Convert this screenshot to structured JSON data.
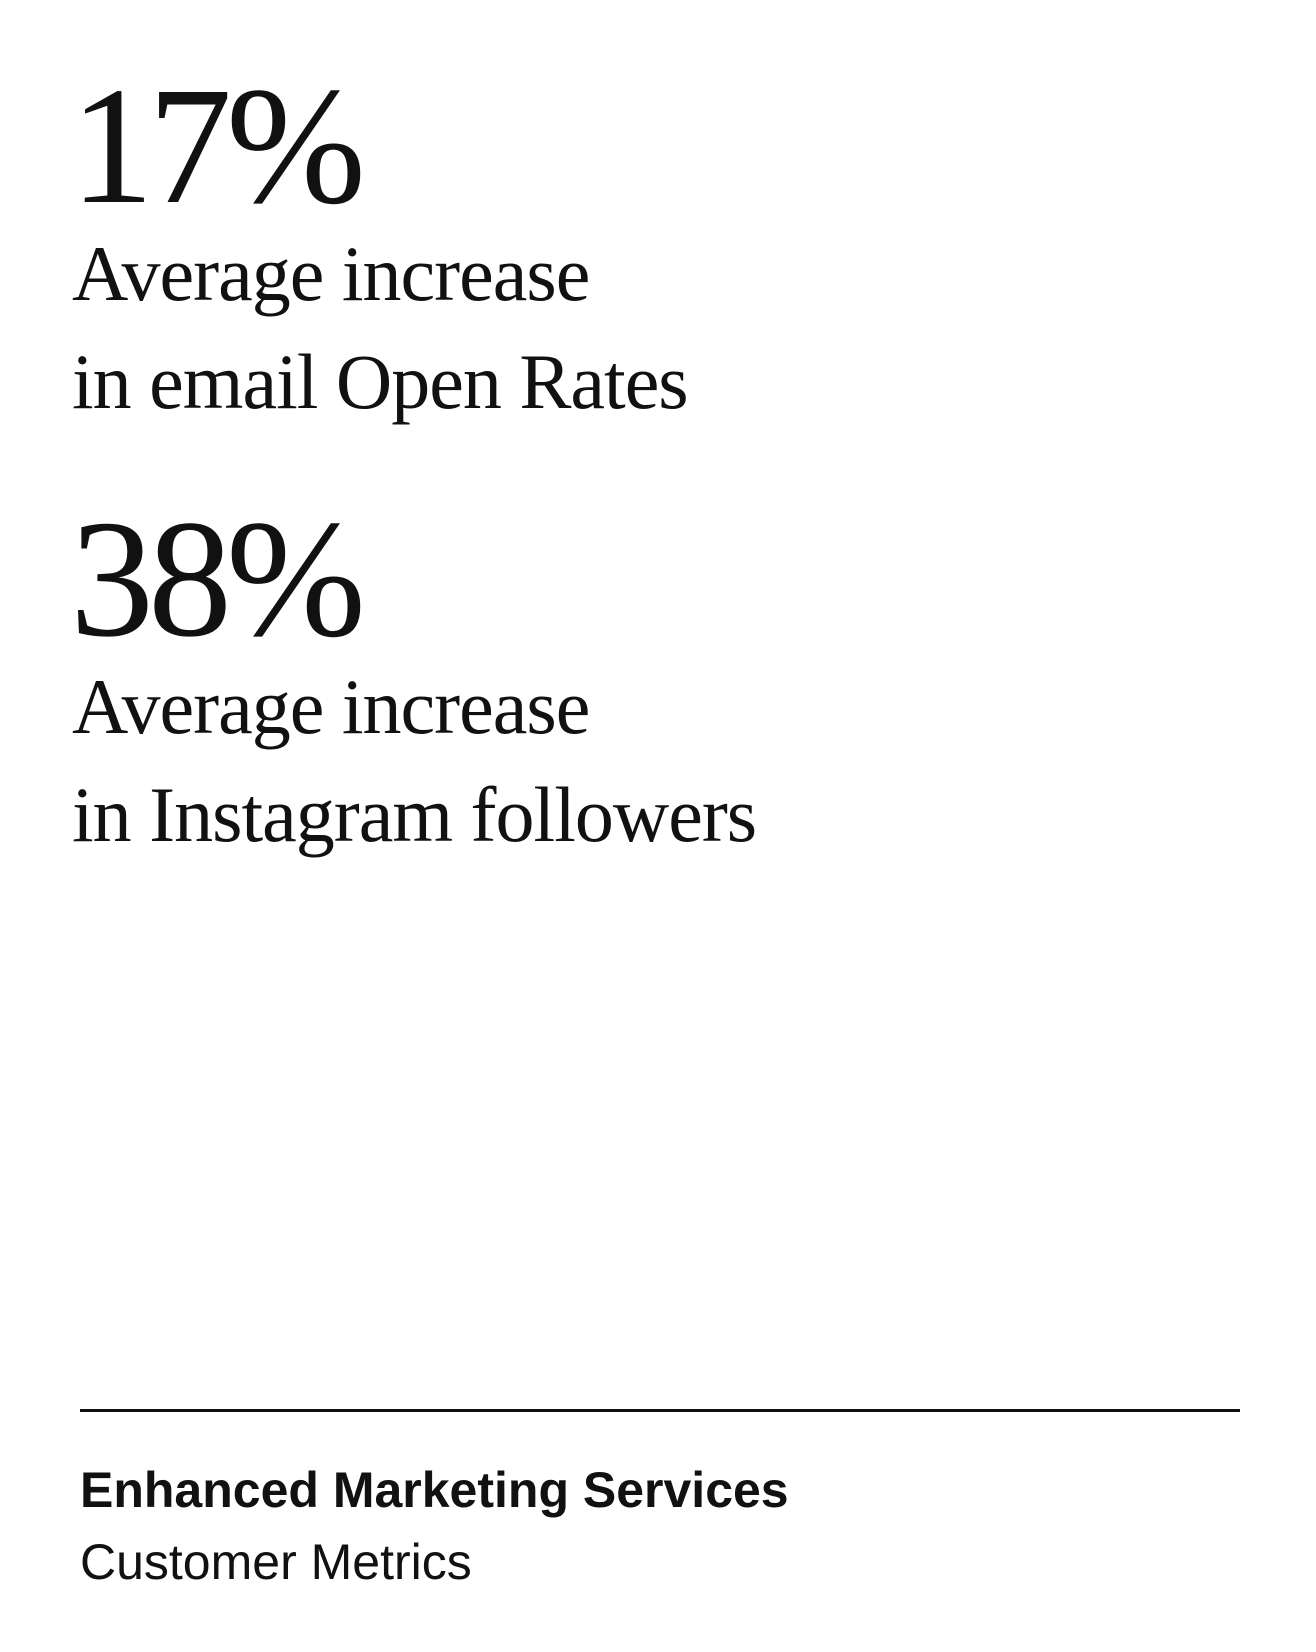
{
  "stats": [
    {
      "value": "17%",
      "label_line1": "Average increase",
      "label_line2": "in email Open Rates"
    },
    {
      "value": "38%",
      "label_line1": "Average increase",
      "label_line2": "in Instagram followers"
    }
  ],
  "footer": {
    "title": "Enhanced Marketing Services",
    "subtitle": "Customer Metrics"
  },
  "colors": {
    "background": "#ffffff",
    "text": "#111111"
  }
}
